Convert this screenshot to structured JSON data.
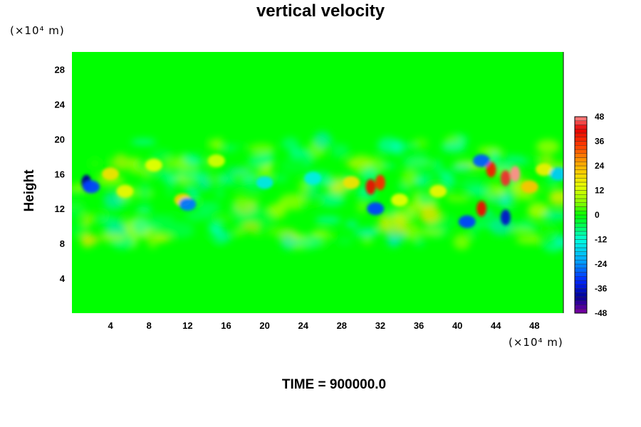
{
  "chart_data": {
    "type": "heatmap",
    "title": "vertical velocity",
    "ylabel": "Height",
    "xlabel": "",
    "x_unit": "(×10⁴ m)",
    "y_unit": "(×10⁴ m)",
    "footer": "TIME = 900000.0",
    "xlim": [
      0,
      51
    ],
    "ylim": [
      0,
      30
    ],
    "x_ticks": [
      4,
      8,
      12,
      16,
      20,
      24,
      28,
      32,
      36,
      40,
      44,
      48
    ],
    "y_ticks": [
      4,
      8,
      12,
      16,
      20,
      24,
      28
    ],
    "colorbar": {
      "min": -48,
      "max": 48,
      "ticks": [
        48,
        36,
        24,
        12,
        0,
        -12,
        -24,
        -36,
        -48
      ]
    },
    "background_value": 0,
    "features": [
      {
        "x": 1.5,
        "y": 15.0,
        "value": -40
      },
      {
        "x": 2.0,
        "y": 14.5,
        "value": -30
      },
      {
        "x": 4.0,
        "y": 16.0,
        "value": 18
      },
      {
        "x": 5.5,
        "y": 14.0,
        "value": 15
      },
      {
        "x": 8.5,
        "y": 17.0,
        "value": 14
      },
      {
        "x": 11.5,
        "y": 13.0,
        "value": 20
      },
      {
        "x": 12.0,
        "y": 12.5,
        "value": -26
      },
      {
        "x": 15.0,
        "y": 17.5,
        "value": 12
      },
      {
        "x": 20.0,
        "y": 15.0,
        "value": -15
      },
      {
        "x": 25.0,
        "y": 15.5,
        "value": -14
      },
      {
        "x": 29.0,
        "y": 15.0,
        "value": 18
      },
      {
        "x": 31.0,
        "y": 14.5,
        "value": 40
      },
      {
        "x": 32.0,
        "y": 15.0,
        "value": 36
      },
      {
        "x": 31.5,
        "y": 12.0,
        "value": -30
      },
      {
        "x": 34.0,
        "y": 13.0,
        "value": 14
      },
      {
        "x": 38.0,
        "y": 14.0,
        "value": 15
      },
      {
        "x": 41.0,
        "y": 10.5,
        "value": -30
      },
      {
        "x": 42.5,
        "y": 12.0,
        "value": 40
      },
      {
        "x": 43.5,
        "y": 16.5,
        "value": 38
      },
      {
        "x": 42.5,
        "y": 17.5,
        "value": -28
      },
      {
        "x": 45.0,
        "y": 11.0,
        "value": -36
      },
      {
        "x": 45.0,
        "y": 15.5,
        "value": 44
      },
      {
        "x": 46.0,
        "y": 16.0,
        "value": 48
      },
      {
        "x": 47.5,
        "y": 14.5,
        "value": 22
      },
      {
        "x": 49.0,
        "y": 16.5,
        "value": 16
      },
      {
        "x": 50.5,
        "y": 16.0,
        "value": -18
      }
    ]
  }
}
